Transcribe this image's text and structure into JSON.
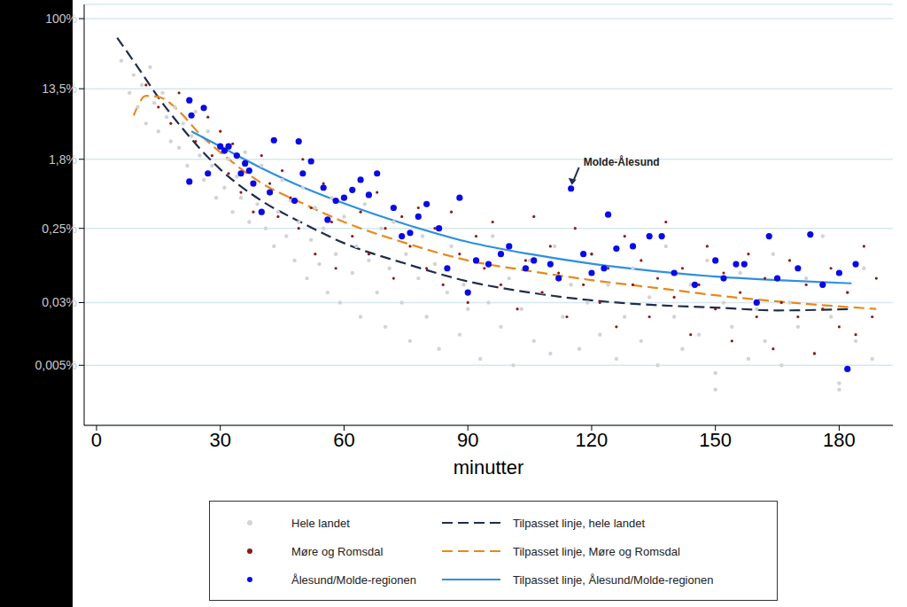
{
  "chart_data": {
    "type": "scatter",
    "x_label": "minutter",
    "log": "y",
    "grid": true,
    "legend": "bottom",
    "xlim": [
      -3,
      193
    ],
    "xticks": [
      0,
      30,
      60,
      90,
      120,
      150,
      180
    ],
    "ylim": [
      0.0009,
      150
    ],
    "yticks": [
      {
        "value": 100,
        "label": "100%"
      },
      {
        "value": 13.5,
        "label": "13,5%"
      },
      {
        "value": 1.8,
        "label": "1,8%"
      },
      {
        "value": 0.25,
        "label": "0,25%"
      },
      {
        "value": 0.03,
        "label": "0,03%"
      },
      {
        "value": 0.005,
        "label": "0,005%"
      }
    ],
    "annotations": [
      {
        "text": "Molde-Ålesund",
        "x": 115,
        "y": 0.78
      }
    ],
    "series": [
      {
        "name": "Hele landet",
        "type": "scatter",
        "marker": "circle",
        "color": "#d3d3d3",
        "x": [
          6,
          8,
          9,
          10,
          11,
          12,
          13,
          14,
          15,
          16,
          17,
          18,
          19,
          20,
          21,
          22,
          23,
          24,
          25,
          26,
          27,
          28,
          29,
          30,
          31,
          32,
          33,
          34,
          35,
          36,
          37,
          38,
          39,
          40,
          41,
          42,
          43,
          44,
          45,
          46,
          47,
          48,
          49,
          50,
          51,
          52,
          53,
          54,
          55,
          56,
          57,
          58,
          59,
          60,
          62,
          63,
          64,
          65,
          66,
          68,
          69,
          70,
          71,
          72,
          74,
          75,
          76,
          78,
          79,
          80,
          82,
          83,
          85,
          86,
          88,
          89,
          90,
          92,
          93,
          95,
          96,
          98,
          100,
          101,
          103,
          105,
          106,
          108,
          110,
          111,
          113,
          115,
          117,
          119,
          120,
          122,
          124,
          126,
          128,
          130,
          132,
          134,
          136,
          138,
          140,
          142,
          144,
          146,
          148,
          150,
          152,
          154,
          156,
          158,
          160,
          162,
          164,
          166,
          168,
          170,
          172,
          174,
          176,
          178,
          180,
          182,
          184,
          186,
          188,
          180,
          150
        ],
        "values": [
          30,
          12,
          20,
          8,
          15,
          5,
          25,
          9,
          4,
          12,
          6,
          3,
          8,
          2.5,
          5,
          1.5,
          3.5,
          7,
          2,
          1,
          4,
          1.5,
          0.6,
          2.5,
          0.8,
          1.8,
          0.4,
          1.1,
          0.6,
          2.2,
          0.3,
          0.9,
          0.5,
          1.5,
          0.25,
          0.7,
          0.15,
          0.4,
          1,
          0.2,
          0.55,
          0.1,
          0.3,
          0.8,
          0.06,
          0.18,
          0.45,
          0.09,
          0.25,
          0.04,
          0.6,
          0.12,
          0.03,
          0.35,
          0.07,
          0.15,
          0.02,
          0.5,
          0.1,
          0.04,
          0.25,
          0.015,
          0.08,
          0.3,
          0.03,
          0.12,
          0.01,
          0.06,
          0.2,
          0.02,
          0.09,
          0.008,
          0.04,
          0.15,
          0.012,
          0.05,
          0.025,
          0.1,
          0.006,
          0.03,
          0.2,
          0.015,
          0.06,
          0.005,
          0.025,
          0.1,
          0.01,
          0.04,
          0.007,
          0.15,
          0.02,
          0.05,
          0.008,
          0.03,
          0.12,
          0.012,
          0.05,
          0.006,
          0.02,
          0.08,
          0.01,
          0.035,
          0.005,
          0.15,
          0.02,
          0.008,
          0.05,
          0.012,
          0.1,
          0.004,
          0.03,
          0.015,
          0.07,
          0.006,
          0.025,
          0.01,
          0.12,
          0.005,
          0.03,
          0.015,
          0.06,
          0.007,
          0.2,
          0.02,
          0.003,
          0.04,
          0.01,
          0.08,
          0.006,
          0.0025,
          0.0025
        ]
      },
      {
        "name": "Møre og Romsdal",
        "type": "scatter",
        "marker": "circle",
        "color": "#8b1a1a",
        "x": [
          12,
          15,
          18,
          20,
          24,
          27,
          28,
          30,
          32,
          33,
          35,
          36,
          38,
          40,
          42,
          44,
          45,
          47,
          49,
          50,
          52,
          53,
          55,
          57,
          58,
          60,
          62,
          64,
          66,
          68,
          70,
          72,
          74,
          76,
          78,
          80,
          82,
          84,
          86,
          88,
          90,
          92,
          94,
          96,
          98,
          100,
          102,
          104,
          106,
          108,
          110,
          112,
          114,
          116,
          118,
          120,
          122,
          124,
          126,
          128,
          130,
          132,
          134,
          136,
          138,
          140,
          142,
          144,
          146,
          148,
          150,
          152,
          154,
          156,
          158,
          160,
          162,
          164,
          166,
          168,
          170,
          172,
          174,
          176,
          178,
          180,
          182,
          184,
          186,
          188,
          189
        ],
        "values": [
          15,
          8,
          5,
          12,
          3,
          6,
          2,
          4,
          1.2,
          2.8,
          0.7,
          1.6,
          0.4,
          2,
          0.9,
          0.35,
          1.3,
          0.6,
          0.25,
          1.8,
          0.45,
          0.12,
          0.9,
          0.3,
          0.08,
          0.6,
          0.2,
          0.4,
          0.12,
          0.7,
          0.25,
          0.06,
          0.35,
          0.15,
          0.45,
          0.08,
          0.25,
          0.05,
          0.4,
          0.12,
          0.03,
          0.2,
          0.08,
          0.3,
          0.05,
          0.15,
          0.025,
          0.1,
          0.35,
          0.04,
          0.15,
          0.07,
          0.02,
          0.25,
          0.05,
          0.12,
          0.03,
          0.08,
          0.015,
          0.2,
          0.05,
          0.1,
          0.02,
          0.06,
          0.3,
          0.035,
          0.08,
          0.012,
          0.05,
          0.15,
          0.025,
          0.07,
          0.01,
          0.04,
          0.12,
          0.02,
          0.06,
          0.008,
          0.03,
          0.1,
          0.02,
          0.05,
          0.007,
          0.025,
          0.08,
          0.015,
          0.04,
          0.012,
          0.15,
          0.02,
          0.06
        ]
      },
      {
        "name": "Ålesund/Molde-regionen",
        "type": "scatter",
        "marker": "circle",
        "color": "#0a0ae6",
        "x": [
          22.5,
          23,
          26,
          22.5,
          27,
          30,
          31,
          32,
          34,
          36,
          37,
          35,
          38,
          40,
          42,
          43,
          48,
          49,
          50,
          52,
          55,
          56,
          58,
          60,
          62,
          64,
          66,
          68,
          72,
          74,
          76,
          78,
          80,
          83,
          85,
          88,
          90,
          92,
          95,
          98,
          100,
          104,
          106,
          110,
          112,
          115,
          118,
          120,
          123,
          124,
          126,
          130,
          134,
          137,
          140,
          145,
          150,
          152,
          155,
          157,
          160,
          163,
          165,
          170,
          173,
          176,
          180,
          182,
          184
        ],
        "values": [
          9.7,
          6.3,
          7.8,
          0.95,
          1.2,
          2.6,
          2.3,
          2.6,
          2,
          1.6,
          1.3,
          1.2,
          0.9,
          0.4,
          0.7,
          3.1,
          0.55,
          3,
          1.2,
          1.7,
          0.8,
          0.32,
          0.55,
          0.6,
          0.75,
          1,
          0.65,
          1.2,
          0.45,
          0.2,
          0.22,
          0.35,
          0.5,
          0.25,
          0.08,
          0.6,
          0.04,
          0.1,
          0.09,
          0.12,
          0.15,
          0.08,
          0.1,
          0.09,
          0.06,
          0.78,
          0.12,
          0.07,
          0.08,
          0.37,
          0.14,
          0.15,
          0.2,
          0.2,
          0.07,
          0.05,
          0.1,
          0.06,
          0.09,
          0.09,
          0.03,
          0.2,
          0.06,
          0.08,
          0.21,
          0.05,
          0.07,
          0.0045,
          0.09
        ]
      },
      {
        "name": "Tilpasset linje, hele landet",
        "type": "line",
        "line_style": "dashed",
        "color": "#1f2d4d",
        "x": [
          5,
          10,
          15,
          20,
          30,
          40,
          50,
          60,
          75,
          90,
          105,
          120,
          135,
          150,
          165,
          183
        ],
        "values": [
          58,
          25,
          10.5,
          4.9,
          1.35,
          0.55,
          0.29,
          0.164,
          0.091,
          0.055,
          0.04,
          0.032,
          0.028,
          0.026,
          0.024,
          0.025
        ]
      },
      {
        "name": "Tilpasset linje, Møre og Romsdal",
        "type": "line",
        "line_style": "dashed",
        "color": "#e8891c",
        "x": [
          9,
          12,
          15,
          20,
          25,
          30,
          40,
          50,
          60,
          75,
          90,
          105,
          120,
          135,
          150,
          165,
          189
        ],
        "values": [
          6.3,
          11,
          10.7,
          7.1,
          3.7,
          2.2,
          0.91,
          0.51,
          0.3,
          0.164,
          0.1,
          0.074,
          0.057,
          0.046,
          0.037,
          0.031,
          0.025
        ]
      },
      {
        "name": "Tilpasset linje, Ålesund/Molde-regionen",
        "type": "line",
        "line_style": "solid",
        "color": "#2e8fe0",
        "x": [
          23,
          30,
          40,
          50,
          60,
          75,
          90,
          105,
          120,
          135,
          150,
          165,
          183
        ],
        "values": [
          4,
          2.6,
          1.4,
          0.81,
          0.51,
          0.28,
          0.17,
          0.12,
          0.091,
          0.074,
          0.063,
          0.057,
          0.052
        ]
      }
    ]
  }
}
